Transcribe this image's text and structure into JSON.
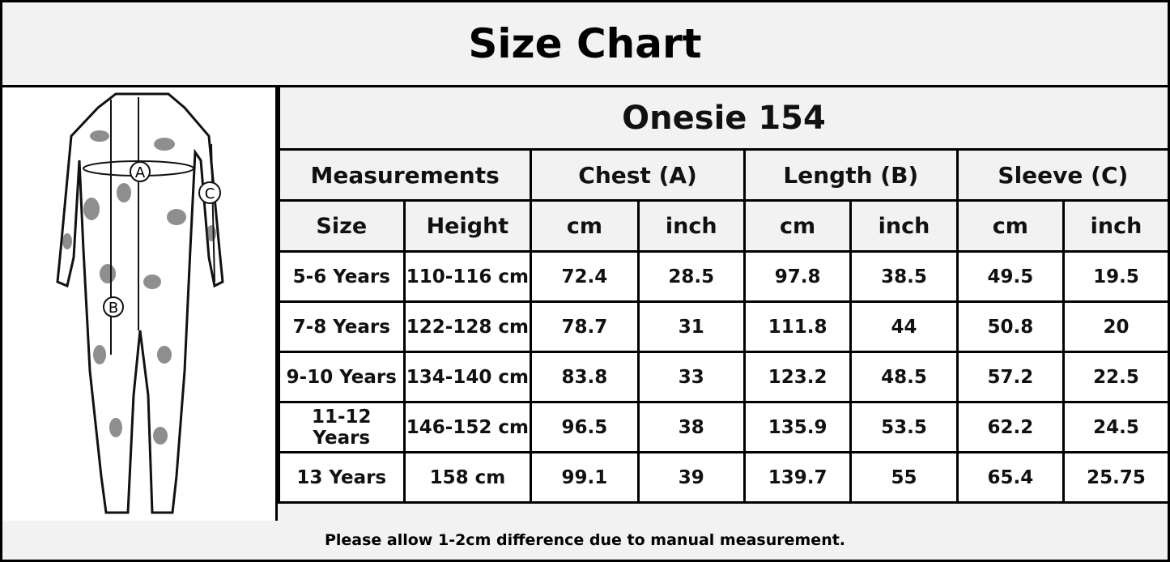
{
  "title": "Size Chart",
  "product": "Onesie 154",
  "figure_labels": {
    "a": "A",
    "b": "B",
    "c": "C"
  },
  "groups": [
    "Measurements",
    "Chest (A)",
    "Length (B)",
    "Sleeve (C)"
  ],
  "columns": [
    "Size",
    "Height",
    "cm",
    "inch",
    "cm",
    "inch",
    "cm",
    "inch"
  ],
  "rows": [
    [
      "5-6 Years",
      "110-116 cm",
      "72.4",
      "28.5",
      "97.8",
      "38.5",
      "49.5",
      "19.5"
    ],
    [
      "7-8 Years",
      "122-128 cm",
      "78.7",
      "31",
      "111.8",
      "44",
      "50.8",
      "20"
    ],
    [
      "9-10 Years",
      "134-140 cm",
      "83.8",
      "33",
      "123.2",
      "48.5",
      "57.2",
      "22.5"
    ],
    [
      "11-12 Years",
      "146-152 cm",
      "96.5",
      "38",
      "135.9",
      "53.5",
      "62.2",
      "24.5"
    ],
    [
      "13 Years",
      "158 cm",
      "99.1",
      "39",
      "139.7",
      "55",
      "65.4",
      "25.75"
    ]
  ],
  "footer": "Please allow 1-2cm difference due to manual measurement."
}
